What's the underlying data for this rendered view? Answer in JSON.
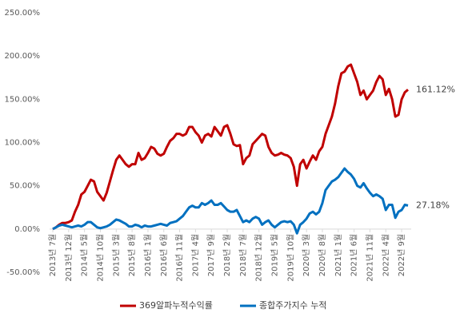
{
  "chart_data": {
    "type": "line",
    "categories": [
      "2013년 7월",
      null,
      null,
      null,
      null,
      "2013년 12월",
      null,
      null,
      null,
      null,
      "2014년 5월",
      null,
      null,
      null,
      null,
      "2014년 10월",
      null,
      null,
      null,
      null,
      "2015년 3월",
      null,
      null,
      null,
      null,
      "2015년 8월",
      null,
      null,
      null,
      null,
      "2016년 1월",
      null,
      null,
      null,
      null,
      "2016년 6월",
      null,
      null,
      null,
      null,
      "2016년 11월",
      null,
      null,
      null,
      null,
      "2017년 4월",
      null,
      null,
      null,
      null,
      "2017년 9월",
      null,
      null,
      null,
      null,
      "2018년 2월",
      null,
      null,
      null,
      null,
      "2018년 7월",
      null,
      null,
      null,
      null,
      "2018년 12월",
      null,
      null,
      null,
      null,
      "2019년 5월",
      null,
      null,
      null,
      null,
      "2019년 10월",
      null,
      null,
      null,
      null,
      "2020년 3월",
      null,
      null,
      null,
      null,
      "2020년 8월",
      null,
      null,
      null,
      null,
      "2021년 1월",
      null,
      null,
      null,
      null,
      "2021년 6월",
      null,
      null,
      null,
      null,
      "2021년 11월",
      null,
      null,
      null,
      null,
      "2022년 4월",
      null,
      null,
      null,
      null,
      "2022년 9월",
      null,
      null
    ],
    "series": [
      {
        "name": "369알파누적수익률",
        "color": "#c00000",
        "values": [
          0,
          2,
          5,
          7,
          7,
          8,
          10,
          20,
          28,
          40,
          43,
          50,
          57,
          55,
          43,
          38,
          33,
          42,
          55,
          68,
          80,
          85,
          80,
          75,
          72,
          75,
          75,
          88,
          80,
          82,
          88,
          95,
          93,
          87,
          85,
          87,
          95,
          102,
          105,
          110,
          110,
          108,
          110,
          118,
          118,
          112,
          108,
          100,
          108,
          110,
          107,
          118,
          113,
          108,
          118,
          120,
          110,
          98,
          96,
          97,
          75,
          82,
          85,
          98,
          102,
          106,
          110,
          108,
          95,
          88,
          85,
          86,
          88,
          86,
          85,
          82,
          72,
          50,
          75,
          80,
          70,
          78,
          85,
          80,
          90,
          95,
          110,
          120,
          130,
          145,
          165,
          180,
          182,
          188,
          190,
          180,
          170,
          155,
          160,
          150,
          155,
          160,
          170,
          177,
          173,
          155,
          162,
          150,
          130,
          132,
          150,
          158,
          161.12
        ],
        "value_labels": [
          null,
          null,
          null,
          null,
          null,
          null,
          null,
          null,
          null,
          null,
          null,
          null,
          null,
          null,
          null,
          null,
          null,
          null,
          null,
          null,
          null,
          null,
          null,
          null,
          null,
          null,
          null,
          null,
          null,
          null,
          null,
          null,
          null,
          null,
          null,
          null,
          null,
          null,
          null,
          null,
          null,
          null,
          null,
          null,
          null,
          null,
          null,
          null,
          null,
          null,
          null,
          null,
          null,
          null,
          null,
          null,
          null,
          null,
          null,
          null,
          null,
          null,
          null,
          null,
          null,
          null,
          null,
          null,
          null,
          null,
          null,
          null,
          null,
          null,
          null,
          null,
          null,
          null,
          null,
          null,
          null,
          null,
          null,
          null,
          null,
          null,
          null,
          null,
          null,
          null,
          null,
          null,
          null,
          null,
          null,
          null,
          null,
          null,
          null,
          null,
          null,
          null,
          null,
          null,
          null,
          null,
          null,
          null,
          null,
          null,
          null,
          null,
          "161.12%"
        ]
      },
      {
        "name": "종합주가지수 누적",
        "color": "#0070c0",
        "values": [
          0,
          2,
          4,
          5,
          4,
          3,
          2,
          3,
          4,
          3,
          5,
          8,
          8,
          5,
          2,
          1,
          2,
          3,
          5,
          8,
          11,
          10,
          8,
          6,
          3,
          3,
          5,
          4,
          2,
          4,
          3,
          3,
          4,
          5,
          6,
          5,
          4,
          7,
          8,
          9,
          12,
          15,
          20,
          25,
          27,
          25,
          25,
          30,
          28,
          30,
          33,
          28,
          28,
          30,
          26,
          22,
          20,
          20,
          22,
          15,
          8,
          10,
          8,
          12,
          14,
          12,
          5,
          8,
          10,
          5,
          2,
          5,
          8,
          9,
          8,
          9,
          5,
          -5,
          5,
          8,
          12,
          18,
          20,
          17,
          20,
          30,
          45,
          50,
          55,
          57,
          60,
          65,
          70,
          66,
          63,
          58,
          50,
          48,
          53,
          47,
          42,
          38,
          40,
          38,
          35,
          22,
          28,
          28,
          13,
          20,
          22,
          28,
          27.18
        ],
        "value_labels": [
          null,
          null,
          null,
          null,
          null,
          null,
          null,
          null,
          null,
          null,
          null,
          null,
          null,
          null,
          null,
          null,
          null,
          null,
          null,
          null,
          null,
          null,
          null,
          null,
          null,
          null,
          null,
          null,
          null,
          null,
          null,
          null,
          null,
          null,
          null,
          null,
          null,
          null,
          null,
          null,
          null,
          null,
          null,
          null,
          null,
          null,
          null,
          null,
          null,
          null,
          null,
          null,
          null,
          null,
          null,
          null,
          null,
          null,
          null,
          null,
          null,
          null,
          null,
          null,
          null,
          null,
          null,
          null,
          null,
          null,
          null,
          null,
          null,
          null,
          null,
          null,
          null,
          null,
          null,
          null,
          null,
          null,
          null,
          null,
          null,
          null,
          null,
          null,
          null,
          null,
          null,
          null,
          null,
          null,
          null,
          null,
          null,
          null,
          null,
          null,
          null,
          null,
          null,
          null,
          null,
          null,
          null,
          null,
          null,
          null,
          null,
          null,
          "27.18%"
        ]
      }
    ],
    "ylim": [
      -50,
      250
    ],
    "yticks": [
      {
        "value": -50,
        "label": "-50.00%"
      },
      {
        "value": 0,
        "label": "0.00%"
      },
      {
        "value": 50,
        "label": "50.00%"
      },
      {
        "value": 100,
        "label": "100.00%"
      },
      {
        "value": 150,
        "label": "150.00%"
      },
      {
        "value": 200,
        "label": "200.00%"
      },
      {
        "value": 250,
        "label": "250.00%"
      }
    ],
    "grid": false,
    "legend": "bottom"
  }
}
